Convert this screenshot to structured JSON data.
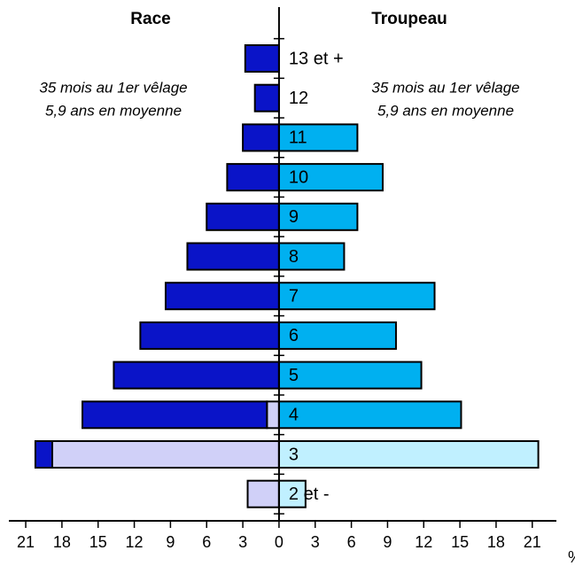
{
  "chart_data": {
    "type": "pyramid",
    "left_title": "Race",
    "right_title": "Troupeau",
    "annotations_left": [
      "35 mois au 1er vêlage",
      "5,9 ans en moyenne"
    ],
    "annotations_right": [
      "35 mois au 1er vêlage",
      "5,9 ans en moyenne"
    ],
    "x_label": "%",
    "categories": [
      "13 et +",
      "12",
      "11",
      "10",
      "9",
      "8",
      "7",
      "6",
      "5",
      "4",
      "3",
      "2 et -"
    ],
    "series": [
      {
        "side": "left",
        "color": "#d0d0f8",
        "values": [
          0,
          0,
          0,
          0,
          0,
          0,
          0,
          0,
          0,
          1.0,
          18.8,
          2.6
        ]
      },
      {
        "side": "left",
        "color": "#0a14c8",
        "values": [
          2.8,
          2.0,
          3.0,
          4.3,
          6.0,
          7.6,
          9.4,
          11.5,
          13.7,
          15.3,
          1.4,
          0
        ]
      },
      {
        "side": "right",
        "color": "#00b0f0",
        "values": [
          0,
          0,
          6.5,
          8.6,
          6.5,
          5.4,
          12.9,
          9.7,
          11.8,
          15.1,
          0,
          0
        ]
      },
      {
        "side": "right",
        "color": "#c0f0ff",
        "values": [
          0,
          0,
          0,
          0,
          0,
          0,
          0,
          0,
          0,
          0,
          21.5,
          2.2
        ]
      }
    ],
    "xlim": [
      -22.4,
      23
    ],
    "xticks": [
      {
        "value": -21,
        "label": "21"
      },
      {
        "value": -18,
        "label": "18"
      },
      {
        "value": -15,
        "label": "15"
      },
      {
        "value": -12,
        "label": "12"
      },
      {
        "value": -9,
        "label": "9"
      },
      {
        "value": -6,
        "label": "6"
      },
      {
        "value": -3,
        "label": "3"
      },
      0,
      3,
      6,
      9,
      12,
      15,
      18,
      21
    ]
  }
}
